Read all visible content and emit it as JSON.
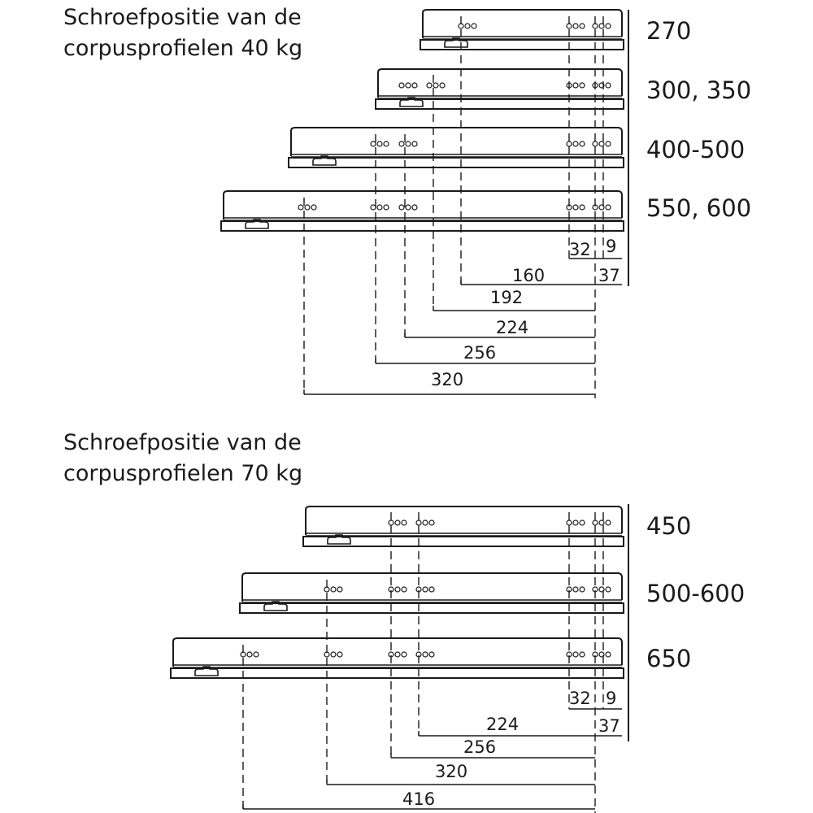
{
  "colors": {
    "line": "#1a1a1a",
    "background": "#ffffff"
  },
  "sections": [
    {
      "title_line1": "Schroefpositie van de",
      "title_line2": "corpusprofielen 40 kg",
      "rails": [
        {
          "label": "270"
        },
        {
          "label": "300, 350"
        },
        {
          "label": "400-500"
        },
        {
          "label": "550, 600"
        }
      ],
      "small_dims": {
        "a": "32",
        "b": "9",
        "c": "37"
      },
      "dims": [
        "160",
        "192",
        "224",
        "256",
        "320"
      ]
    },
    {
      "title_line1": "Schroefpositie van de",
      "title_line2": "corpusprofielen 70 kg",
      "rails": [
        {
          "label": "450"
        },
        {
          "label": "500-600"
        },
        {
          "label": "650"
        }
      ],
      "small_dims": {
        "a": "32",
        "b": "9",
        "c": "37"
      },
      "dims": [
        "224",
        "256",
        "320",
        "416"
      ]
    }
  ]
}
